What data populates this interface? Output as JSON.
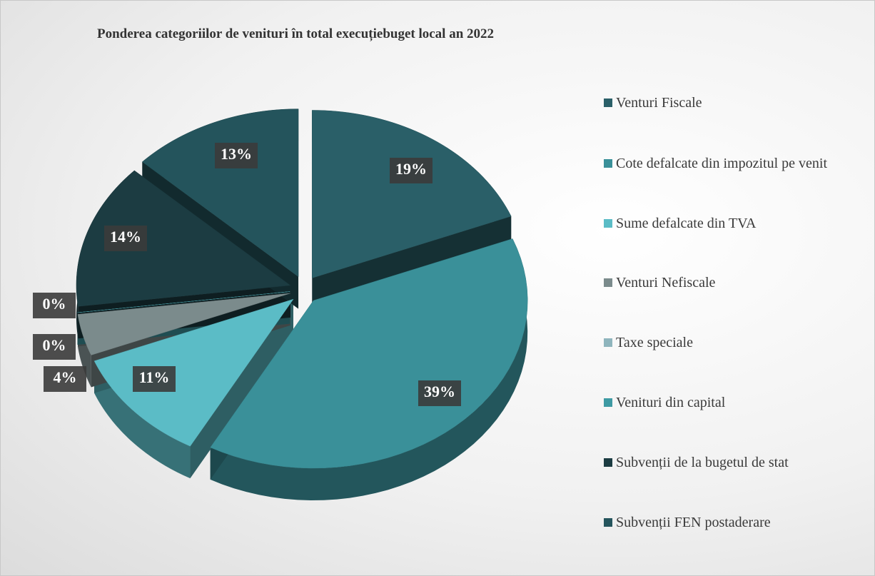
{
  "chart_data": {
    "type": "pie",
    "title": "Ponderea categoriilor de venituri în total execuțiebuget local an 2022",
    "categories": [
      "Venturi Fiscale",
      "Cote defalcate din impozitul pe venit",
      "Sume defalcate din TVA",
      "Venturi Nefiscale",
      "Taxe speciale",
      "Venituri din capital",
      "Subvenții de la bugetul de stat",
      "Subvenții FEN postaderare"
    ],
    "values": [
      19,
      39,
      11,
      4,
      0,
      0,
      14,
      13
    ],
    "value_labels": [
      "19%",
      "39%",
      "11%",
      "4%",
      "0%",
      "0%",
      "14%",
      "13%"
    ],
    "colors": [
      "#2a5f68",
      "#3a9099",
      "#5bbcc6",
      "#7b8b8c",
      "#8fb5bd",
      "#3e9aa3",
      "#1c3c42",
      "#24545c"
    ],
    "legend": "right"
  }
}
